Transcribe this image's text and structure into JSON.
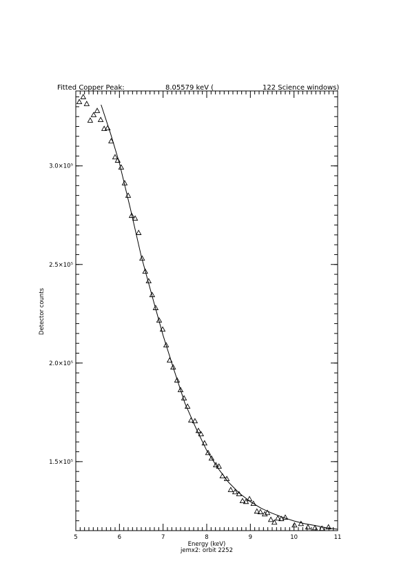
{
  "chart_data": {
    "type": "scatter",
    "title": [
      "Fitted Copper Peak:",
      "8.05579 keV (",
      "122 Science windows)"
    ],
    "x_label": "Energy (keV)",
    "subtitle": "jemx2: orbit 2252",
    "y_label": "Detector counts",
    "xlim": [
      5,
      11
    ],
    "xticks": [
      5,
      6,
      7,
      8,
      9,
      10,
      11
    ],
    "x_minor_divisions": 10,
    "ylim": [
      115000,
      338000
    ],
    "yticks": [
      {
        "value": 150000,
        "label": "1.5×10⁵"
      },
      {
        "value": 200000,
        "label": "2.0×10⁵"
      },
      {
        "value": 250000,
        "label": "2.5×10⁵"
      },
      {
        "value": 300000,
        "label": "3.0×10⁵"
      }
    ],
    "y_minor_divisions": 10,
    "color": "#000000",
    "series": [
      {
        "kind": "markers",
        "x": [
          5.08,
          5.17,
          5.25,
          5.33,
          5.41,
          5.49,
          5.57,
          5.65,
          5.73,
          5.81,
          5.9,
          5.96,
          6.04,
          6.12,
          6.2,
          6.28,
          6.36,
          6.44,
          6.52,
          6.59,
          6.67,
          6.75,
          6.83,
          6.91,
          6.99,
          7.07,
          7.15,
          7.23,
          7.32,
          7.4,
          7.48,
          7.56,
          7.64,
          7.73,
          7.81,
          7.87,
          7.95,
          8.03,
          8.11,
          8.21,
          8.28,
          8.36,
          8.46,
          8.55,
          8.65,
          8.74,
          8.82,
          8.9,
          8.98,
          9.07,
          9.15,
          9.23,
          9.33,
          9.39,
          9.47,
          9.55,
          9.63,
          9.71,
          9.8,
          10.01,
          10.16,
          10.32,
          10.48,
          10.64,
          10.79
        ],
        "values": [
          332500,
          335000,
          331500,
          323100,
          325900,
          328000,
          323400,
          318900,
          319200,
          312600,
          304500,
          302800,
          299300,
          291300,
          285000,
          274800,
          273400,
          266100,
          253100,
          246500,
          241600,
          234600,
          228000,
          221700,
          217100,
          209100,
          201400,
          197900,
          191300,
          186400,
          182200,
          178000,
          171000,
          170600,
          165700,
          164000,
          159400,
          154500,
          151700,
          148300,
          147600,
          142700,
          141300,
          135700,
          134600,
          133600,
          130100,
          129700,
          131100,
          128700,
          124800,
          124500,
          123400,
          124100,
          120600,
          119200,
          121300,
          121000,
          121700,
          117800,
          118500,
          116800,
          116400,
          116100,
          116800
        ]
      },
      {
        "kind": "line",
        "x": [
          5.58,
          5.8,
          6.0,
          6.25,
          6.5,
          6.75,
          7.0,
          7.25,
          7.5,
          7.75,
          8.0,
          8.25,
          8.5,
          8.75,
          9.0,
          9.25,
          9.5,
          9.75,
          10.0,
          10.25,
          10.5,
          10.75,
          11.0
        ],
        "values": [
          331000,
          316100,
          301400,
          278300,
          254200,
          233900,
          214000,
          196500,
          179700,
          167100,
          155600,
          146900,
          139500,
          133900,
          129700,
          126300,
          123800,
          121700,
          119900,
          118500,
          117500,
          116400,
          115700
        ]
      }
    ]
  }
}
